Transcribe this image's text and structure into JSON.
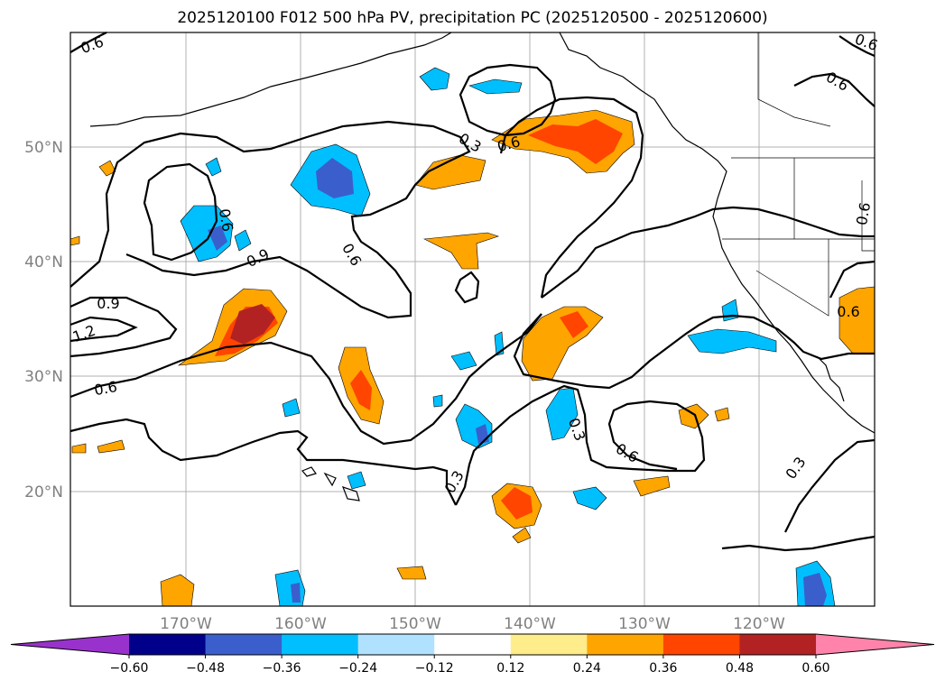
{
  "title": "2025120100 F012 500 hPa PV, precipitation PC (2025120500 - 2025120600)",
  "map": {
    "lat_labels": [
      "50°N",
      "40°N",
      "30°N",
      "20°N"
    ],
    "lon_labels": [
      "170°W",
      "160°W",
      "150°W",
      "140°W",
      "130°W",
      "120°W"
    ],
    "contour_labels": [
      "0.6",
      "0.6",
      "0.3",
      "0.6",
      "0.9",
      "0.6",
      "0.9",
      "1.2",
      "0.6",
      "0.6",
      "0.3",
      "0.3",
      "0.6",
      "0.3",
      "0.6",
      "0.6",
      "0.6"
    ]
  },
  "colorbar": {
    "tick_labels": [
      "−0.60",
      "−0.48",
      "−0.36",
      "−0.24",
      "−0.12",
      "0.12",
      "0.24",
      "0.36",
      "0.48",
      "0.60"
    ],
    "colors": [
      "#9932cc",
      "#00008b",
      "#3a5fcd",
      "#00bfff",
      "#b0e2ff",
      "#ffffff",
      "#ffec8b",
      "#ffa500",
      "#ff4500",
      "#b22222",
      "#ff83aa"
    ]
  }
}
